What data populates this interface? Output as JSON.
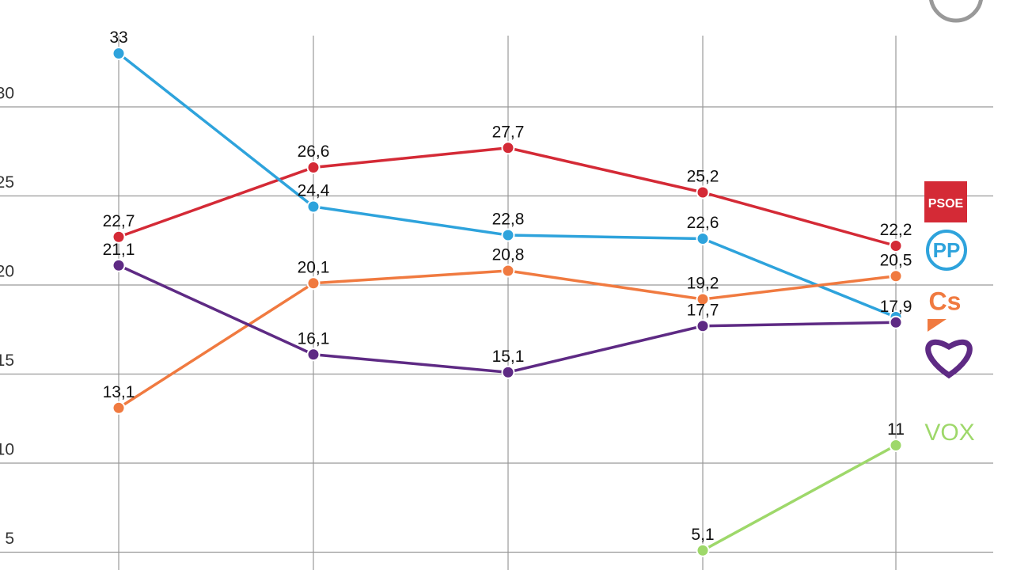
{
  "chart_data": {
    "type": "line",
    "categories": [
      null,
      null,
      null,
      null,
      null
    ],
    "ylim": [
      4,
      36
    ],
    "yticks": [
      5,
      10,
      15,
      20,
      25,
      30
    ],
    "grid": true,
    "series": [
      {
        "name": "PSOE",
        "color": "#d42a36",
        "values": [
          22.7,
          26.6,
          27.7,
          25.2,
          22.2
        ],
        "value_labels": [
          "22,7",
          "26,6",
          "27,7",
          "25,2",
          "22,2"
        ]
      },
      {
        "name": "PP",
        "color": "#2ea3dc",
        "values": [
          33,
          24.4,
          22.8,
          22.6,
          18.2
        ],
        "value_labels": [
          "33",
          "24,4",
          "22,8",
          "22,6",
          null
        ]
      },
      {
        "name": "Cs",
        "color": "#f07a40",
        "values": [
          13.1,
          20.1,
          20.8,
          19.2,
          20.5
        ],
        "value_labels": [
          "13,1",
          "20,1",
          "20,8",
          "19,2",
          "20,5"
        ]
      },
      {
        "color": "#5e2a84",
        "values": [
          21.1,
          16.1,
          15.1,
          17.7,
          17.9
        ],
        "value_labels": [
          "21,1",
          "16,1",
          "15,1",
          "17,7",
          "17,9"
        ]
      },
      {
        "name": "VOX",
        "color": "#9ed86a",
        "values": [
          null,
          null,
          null,
          5.1,
          11
        ],
        "value_labels": [
          null,
          null,
          null,
          "5,1",
          "11"
        ]
      }
    ]
  }
}
